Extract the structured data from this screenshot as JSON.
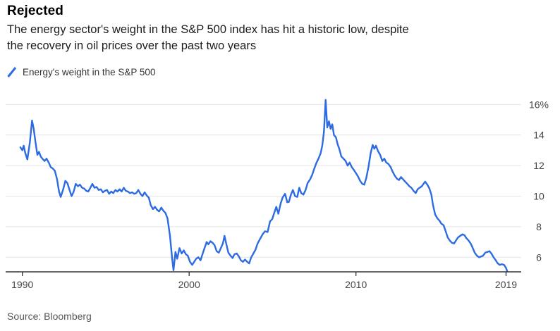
{
  "header": {
    "title": "Rejected",
    "subtitle_lines": [
      "The energy sector's weight in the S&P 500 index has hit a historic low, despite",
      "the recovery in oil prices over the past two years"
    ]
  },
  "legend": {
    "label": "Energy's weight in the S&P 500"
  },
  "source": {
    "text": "Source: Bloomberg"
  },
  "colors": {
    "line": "#2d6be2",
    "grid": "#e4e4e4",
    "axis": "#333333",
    "tick_label": "#454545"
  },
  "chart_data": {
    "type": "line",
    "title": "Rejected",
    "series_name": "Energy's weight in the S&P 500",
    "unit": "%",
    "grid": "horizontal",
    "legend_position": "top-left",
    "x_ticks": [
      1990,
      2000,
      2010,
      2019
    ],
    "x_tick_labels": [
      "1990",
      "2000",
      "2010",
      "2019"
    ],
    "y_ticks": [
      16,
      14,
      12,
      10,
      8,
      6
    ],
    "y_tick_labels": [
      "16%",
      "14",
      "12",
      "10",
      "8",
      "6"
    ],
    "xlim": [
      1989.0,
      2019.9
    ],
    "ylim": [
      5.05,
      16.7
    ],
    "points": [
      [
        1989.88,
        13.2
      ],
      [
        1990.0,
        13.0
      ],
      [
        1990.08,
        13.3
      ],
      [
        1990.17,
        12.85
      ],
      [
        1990.3,
        12.4
      ],
      [
        1990.45,
        13.5
      ],
      [
        1990.58,
        14.95
      ],
      [
        1990.68,
        14.4
      ],
      [
        1990.78,
        13.6
      ],
      [
        1990.9,
        12.7
      ],
      [
        1991.0,
        12.9
      ],
      [
        1991.1,
        12.6
      ],
      [
        1991.2,
        12.45
      ],
      [
        1991.33,
        12.3
      ],
      [
        1991.45,
        12.45
      ],
      [
        1991.58,
        12.2
      ],
      [
        1991.7,
        11.9
      ],
      [
        1991.83,
        11.8
      ],
      [
        1991.95,
        11.65
      ],
      [
        1992.08,
        11.1
      ],
      [
        1992.2,
        10.3
      ],
      [
        1992.3,
        9.95
      ],
      [
        1992.45,
        10.45
      ],
      [
        1992.58,
        11.0
      ],
      [
        1992.7,
        10.85
      ],
      [
        1992.83,
        10.4
      ],
      [
        1992.95,
        10.0
      ],
      [
        1993.08,
        10.3
      ],
      [
        1993.2,
        10.8
      ],
      [
        1993.33,
        10.65
      ],
      [
        1993.45,
        10.75
      ],
      [
        1993.58,
        10.55
      ],
      [
        1993.7,
        10.5
      ],
      [
        1993.83,
        10.35
      ],
      [
        1993.95,
        10.3
      ],
      [
        1994.08,
        10.55
      ],
      [
        1994.2,
        10.8
      ],
      [
        1994.33,
        10.55
      ],
      [
        1994.45,
        10.6
      ],
      [
        1994.58,
        10.4
      ],
      [
        1994.7,
        10.45
      ],
      [
        1994.83,
        10.25
      ],
      [
        1994.95,
        10.35
      ],
      [
        1995.08,
        10.4
      ],
      [
        1995.2,
        10.15
      ],
      [
        1995.33,
        10.3
      ],
      [
        1995.45,
        10.2
      ],
      [
        1995.58,
        10.4
      ],
      [
        1995.7,
        10.3
      ],
      [
        1995.83,
        10.45
      ],
      [
        1995.95,
        10.3
      ],
      [
        1996.08,
        10.55
      ],
      [
        1996.2,
        10.35
      ],
      [
        1996.33,
        10.3
      ],
      [
        1996.45,
        10.2
      ],
      [
        1996.58,
        10.25
      ],
      [
        1996.7,
        10.15
      ],
      [
        1996.83,
        10.2
      ],
      [
        1996.95,
        10.4
      ],
      [
        1997.08,
        10.15
      ],
      [
        1997.2,
        10.0
      ],
      [
        1997.33,
        10.25
      ],
      [
        1997.45,
        10.05
      ],
      [
        1997.58,
        9.9
      ],
      [
        1997.7,
        9.4
      ],
      [
        1997.83,
        9.15
      ],
      [
        1997.95,
        9.3
      ],
      [
        1998.08,
        9.1
      ],
      [
        1998.2,
        9.0
      ],
      [
        1998.33,
        9.25
      ],
      [
        1998.45,
        9.05
      ],
      [
        1998.58,
        8.9
      ],
      [
        1998.7,
        8.55
      ],
      [
        1998.85,
        7.4
      ],
      [
        1998.98,
        5.9
      ],
      [
        1999.06,
        5.15
      ],
      [
        1999.18,
        6.35
      ],
      [
        1999.28,
        5.9
      ],
      [
        1999.42,
        6.6
      ],
      [
        1999.55,
        6.25
      ],
      [
        1999.68,
        6.45
      ],
      [
        1999.8,
        6.2
      ],
      [
        1999.92,
        6.1
      ],
      [
        2000.05,
        5.7
      ],
      [
        2000.18,
        5.5
      ],
      [
        2000.3,
        5.7
      ],
      [
        2000.42,
        5.9
      ],
      [
        2000.55,
        6.0
      ],
      [
        2000.68,
        5.8
      ],
      [
        2000.8,
        6.2
      ],
      [
        2000.92,
        6.6
      ],
      [
        2001.05,
        7.0
      ],
      [
        2001.15,
        6.85
      ],
      [
        2001.28,
        7.05
      ],
      [
        2001.4,
        6.95
      ],
      [
        2001.52,
        6.8
      ],
      [
        2001.65,
        6.4
      ],
      [
        2001.78,
        6.3
      ],
      [
        2001.9,
        6.6
      ],
      [
        2002.02,
        6.9
      ],
      [
        2002.12,
        7.4
      ],
      [
        2002.22,
        6.9
      ],
      [
        2002.35,
        6.3
      ],
      [
        2002.48,
        6.1
      ],
      [
        2002.6,
        5.95
      ],
      [
        2002.72,
        6.2
      ],
      [
        2002.85,
        6.25
      ],
      [
        2002.98,
        6.05
      ],
      [
        2003.1,
        5.8
      ],
      [
        2003.22,
        5.7
      ],
      [
        2003.35,
        5.85
      ],
      [
        2003.48,
        5.7
      ],
      [
        2003.6,
        5.6
      ],
      [
        2003.72,
        6.0
      ],
      [
        2003.85,
        6.25
      ],
      [
        2003.98,
        6.5
      ],
      [
        2004.1,
        6.9
      ],
      [
        2004.25,
        7.2
      ],
      [
        2004.4,
        7.5
      ],
      [
        2004.55,
        7.7
      ],
      [
        2004.7,
        7.65
      ],
      [
        2004.85,
        8.35
      ],
      [
        2004.98,
        8.5
      ],
      [
        2005.1,
        8.9
      ],
      [
        2005.22,
        9.3
      ],
      [
        2005.35,
        8.85
      ],
      [
        2005.48,
        9.5
      ],
      [
        2005.6,
        9.9
      ],
      [
        2005.75,
        10.15
      ],
      [
        2005.88,
        9.6
      ],
      [
        2005.98,
        9.62
      ],
      [
        2006.1,
        10.1
      ],
      [
        2006.22,
        10.4
      ],
      [
        2006.35,
        10.0
      ],
      [
        2006.48,
        9.95
      ],
      [
        2006.6,
        10.55
      ],
      [
        2006.72,
        10.2
      ],
      [
        2006.85,
        10.1
      ],
      [
        2006.98,
        10.4
      ],
      [
        2007.1,
        10.85
      ],
      [
        2007.25,
        11.1
      ],
      [
        2007.38,
        11.4
      ],
      [
        2007.5,
        11.8
      ],
      [
        2007.62,
        12.15
      ],
      [
        2007.75,
        12.45
      ],
      [
        2007.88,
        12.8
      ],
      [
        2007.98,
        13.3
      ],
      [
        2008.08,
        14.2
      ],
      [
        2008.18,
        16.3
      ],
      [
        2008.28,
        14.5
      ],
      [
        2008.38,
        14.9
      ],
      [
        2008.48,
        14.4
      ],
      [
        2008.58,
        14.7
      ],
      [
        2008.68,
        14.0
      ],
      [
        2008.8,
        13.85
      ],
      [
        2008.9,
        13.4
      ],
      [
        2009.0,
        13.1
      ],
      [
        2009.12,
        12.6
      ],
      [
        2009.25,
        12.45
      ],
      [
        2009.38,
        12.3
      ],
      [
        2009.5,
        12.0
      ],
      [
        2009.62,
        12.2
      ],
      [
        2009.75,
        11.9
      ],
      [
        2009.88,
        11.7
      ],
      [
        2010.0,
        11.5
      ],
      [
        2010.12,
        11.3
      ],
      [
        2010.25,
        11.0
      ],
      [
        2010.38,
        10.8
      ],
      [
        2010.5,
        10.75
      ],
      [
        2010.62,
        11.2
      ],
      [
        2010.75,
        11.9
      ],
      [
        2010.88,
        12.8
      ],
      [
        2011.0,
        13.35
      ],
      [
        2011.1,
        13.1
      ],
      [
        2011.2,
        13.3
      ],
      [
        2011.32,
        12.95
      ],
      [
        2011.45,
        12.7
      ],
      [
        2011.58,
        12.3
      ],
      [
        2011.7,
        12.45
      ],
      [
        2011.82,
        12.2
      ],
      [
        2011.95,
        12.1
      ],
      [
        2012.08,
        11.9
      ],
      [
        2012.2,
        11.6
      ],
      [
        2012.32,
        11.35
      ],
      [
        2012.45,
        11.15
      ],
      [
        2012.58,
        11.05
      ],
      [
        2012.7,
        11.25
      ],
      [
        2012.82,
        11.1
      ],
      [
        2012.95,
        10.95
      ],
      [
        2013.08,
        10.8
      ],
      [
        2013.2,
        10.65
      ],
      [
        2013.32,
        10.55
      ],
      [
        2013.45,
        10.35
      ],
      [
        2013.58,
        10.2
      ],
      [
        2013.7,
        10.45
      ],
      [
        2013.82,
        10.55
      ],
      [
        2013.95,
        10.65
      ],
      [
        2014.05,
        10.8
      ],
      [
        2014.15,
        10.95
      ],
      [
        2014.28,
        10.75
      ],
      [
        2014.4,
        10.5
      ],
      [
        2014.52,
        10.1
      ],
      [
        2014.62,
        9.4
      ],
      [
        2014.75,
        8.8
      ],
      [
        2014.88,
        8.55
      ],
      [
        2015.0,
        8.4
      ],
      [
        2015.12,
        8.2
      ],
      [
        2015.25,
        8.1
      ],
      [
        2015.38,
        7.7
      ],
      [
        2015.5,
        7.3
      ],
      [
        2015.62,
        7.1
      ],
      [
        2015.75,
        6.95
      ],
      [
        2015.88,
        6.9
      ],
      [
        2016.0,
        7.1
      ],
      [
        2016.12,
        7.3
      ],
      [
        2016.25,
        7.4
      ],
      [
        2016.38,
        7.5
      ],
      [
        2016.5,
        7.45
      ],
      [
        2016.62,
        7.25
      ],
      [
        2016.75,
        7.1
      ],
      [
        2016.88,
        6.9
      ],
      [
        2017.0,
        6.6
      ],
      [
        2017.12,
        6.3
      ],
      [
        2017.25,
        6.1
      ],
      [
        2017.38,
        6.0
      ],
      [
        2017.5,
        6.05
      ],
      [
        2017.62,
        6.1
      ],
      [
        2017.75,
        6.3
      ],
      [
        2017.88,
        6.35
      ],
      [
        2018.0,
        6.4
      ],
      [
        2018.12,
        6.25
      ],
      [
        2018.25,
        6.0
      ],
      [
        2018.38,
        5.8
      ],
      [
        2018.5,
        5.6
      ],
      [
        2018.62,
        5.5
      ],
      [
        2018.75,
        5.55
      ],
      [
        2018.88,
        5.5
      ],
      [
        2019.0,
        5.3
      ],
      [
        2019.06,
        5.1
      ]
    ]
  }
}
